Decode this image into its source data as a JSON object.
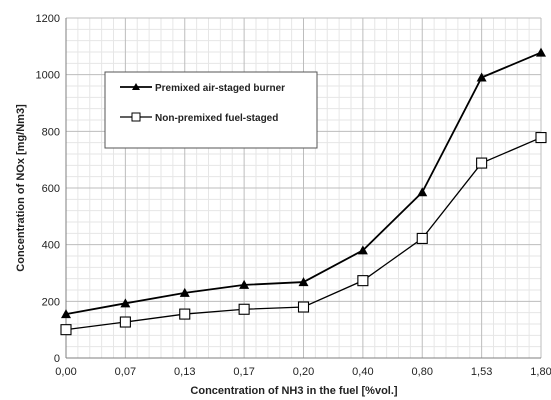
{
  "chart_data": {
    "type": "line",
    "categories": [
      "0,00",
      "0,07",
      "0,13",
      "0,17",
      "0,20",
      "0,40",
      "0,80",
      "1,53",
      "1,80"
    ],
    "series": [
      {
        "name": "Premixed air-staged burner",
        "marker": "filled-triangle",
        "color": "#000000",
        "values": [
          155,
          193,
          230,
          258,
          268,
          380,
          585,
          990,
          1078
        ]
      },
      {
        "name": "Non-premixed fuel-staged",
        "marker": "open-square",
        "color": "#000000",
        "values": [
          100,
          127,
          155,
          172,
          180,
          273,
          422,
          688,
          778
        ]
      }
    ],
    "xlabel": "Concentration of NH3 in the fuel [%vol.]",
    "ylabel": "Concentration of NOx [mg/Nm3]",
    "ylim": [
      0,
      1200
    ],
    "yticks": [
      0,
      200,
      400,
      600,
      800,
      1000,
      1200
    ],
    "grid": true,
    "legend_position": "upper-left"
  }
}
